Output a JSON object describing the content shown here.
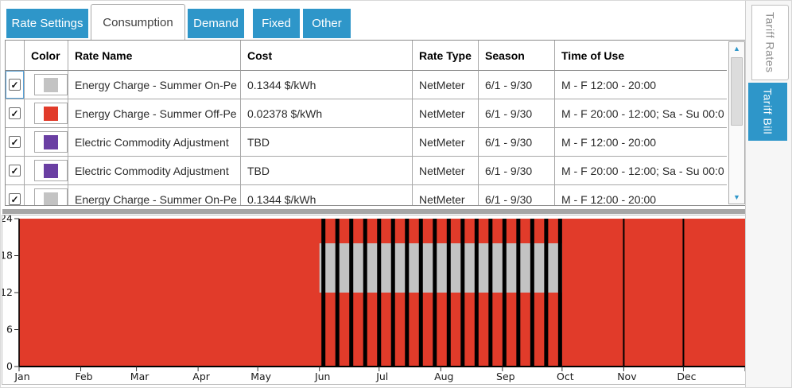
{
  "top_tabs": [
    {
      "label": "Rate Settings",
      "selected": false
    },
    {
      "label": "Consumption",
      "selected": true
    },
    {
      "label": "Demand",
      "selected": false
    },
    {
      "label": "Fixed",
      "selected": false
    },
    {
      "label": "Other",
      "selected": false
    }
  ],
  "right_tabs": [
    {
      "label": "Tariff Rates",
      "selected": true
    },
    {
      "label": "Tariff Bill",
      "selected": false
    }
  ],
  "icons": {
    "check_glyph": "✓",
    "scroll_up_glyph": "▲",
    "scroll_down_glyph": "▼"
  },
  "colors": {
    "accent_blue": "#2E96C9",
    "off_peak_red": "#E13B2A",
    "on_peak_gray": "#C3C3C3",
    "adjustment_purple": "#6A3FA3",
    "bar_black": "#000000"
  },
  "table": {
    "headers": {
      "select": "",
      "color": "Color",
      "rate_name": "Rate Name",
      "cost": "Cost",
      "rate_type": "Rate Type",
      "season": "Season",
      "time_of_use": "Time of Use"
    },
    "rows": [
      {
        "checked": true,
        "color": "#C3C3C3",
        "rate_name": "Energy Charge - Summer On-Pe",
        "cost": "0.1344 $/kWh",
        "rate_type": "NetMeter",
        "season": "6/1 - 9/30",
        "time_of_use": "M - F 12:00 - 20:00"
      },
      {
        "checked": true,
        "color": "#E13B2A",
        "rate_name": "Energy Charge - Summer Off-Pe",
        "cost": "0.02378 $/kWh",
        "rate_type": "NetMeter",
        "season": "6/1 - 9/30",
        "time_of_use": "M - F 20:00 - 12:00; Sa - Su 00:0"
      },
      {
        "checked": true,
        "color": "#6A3FA3",
        "rate_name": "Electric Commodity Adjustment",
        "cost": "TBD",
        "rate_type": "NetMeter",
        "season": "6/1 - 9/30",
        "time_of_use": "M - F 12:00 - 20:00"
      },
      {
        "checked": true,
        "color": "#6A3FA3",
        "rate_name": "Electric Commodity Adjustment",
        "cost": "TBD",
        "rate_type": "NetMeter",
        "season": "6/1 - 9/30",
        "time_of_use": "M - F 20:00 - 12:00; Sa - Su 00:0"
      },
      {
        "checked": true,
        "color": "#C3C3C3",
        "rate_name": "Energy Charge - Summer On-Pe",
        "cost": "0.1344 $/kWh",
        "rate_type": "NetMeter",
        "season": "6/1 - 9/30",
        "time_of_use": "M - F 12:00 - 20:00"
      }
    ]
  },
  "chart_data": {
    "type": "heatmap",
    "title": "",
    "xlabel": "",
    "ylabel": "",
    "description": "Time-of-use map: hour of day (0-24) vs day of year (Jan-Dec)",
    "x_tick_labels": [
      "Jan",
      "Feb",
      "Mar",
      "Apr",
      "May",
      "Jun",
      "Jul",
      "Aug",
      "Sep",
      "Oct",
      "Nov",
      "Dec"
    ],
    "month_start_days": [
      1,
      32,
      60,
      91,
      121,
      152,
      182,
      213,
      244,
      274,
      305,
      335,
      366
    ],
    "y_ticks": [
      0,
      6,
      12,
      18,
      24
    ],
    "ylim": [
      0,
      24
    ],
    "days_in_year": 365,
    "grid": false,
    "legend_position": "none",
    "background_value": {
      "label": "Off-Peak",
      "color": "#E13B2A"
    },
    "on_peak_band": {
      "label": "On-Peak (M - F 12:00 - 20:00, 6/1 - 9/30)",
      "color": "#C3C3C3",
      "start_day": 152,
      "end_day": 274,
      "hour_start": 12,
      "hour_end": 20
    },
    "weekend_bars": {
      "label": "weekend days",
      "color": "#000000",
      "width_days": 2,
      "start_days": [
        153,
        160,
        167,
        174,
        181,
        188,
        195,
        202,
        209,
        216,
        223,
        230,
        237,
        244,
        251,
        258,
        265,
        272
      ]
    },
    "month_marker_days": [
      305,
      335
    ],
    "month_marker_color": "#000000"
  }
}
